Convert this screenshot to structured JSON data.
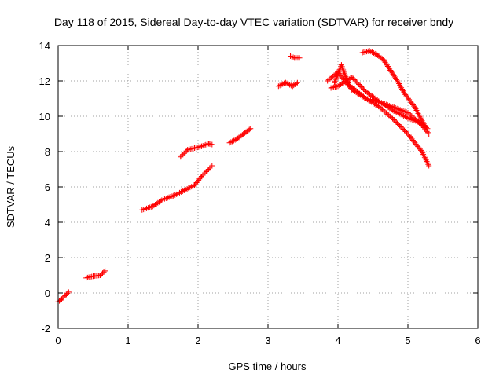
{
  "chart_data": {
    "type": "scatter",
    "title": "Day 118 of 2015, Sidereal Day-to-day VTEC variation (SDTVAR) for receiver bndy",
    "xlabel": "GPS time / hours",
    "ylabel": "SDTVAR / TECUs",
    "xlim": [
      0,
      6
    ],
    "ylim": [
      -2,
      14
    ],
    "xticks": [
      0,
      1,
      2,
      3,
      4,
      5,
      6
    ],
    "yticks": [
      -2,
      0,
      2,
      4,
      6,
      8,
      10,
      12,
      14
    ],
    "grid": true,
    "marker": "plus",
    "color": "#ff0000",
    "series": [
      {
        "x": [
          0.0,
          0.05,
          0.1,
          0.15
        ],
        "y": [
          -0.5,
          -0.35,
          -0.15,
          0.05
        ]
      },
      {
        "x": [
          0.4,
          0.5,
          0.6,
          0.67
        ],
        "y": [
          0.85,
          0.95,
          1.0,
          1.25
        ]
      },
      {
        "x": [
          1.2,
          1.35,
          1.5,
          1.65,
          1.8,
          1.95,
          2.05,
          2.2
        ],
        "y": [
          4.7,
          4.9,
          5.3,
          5.5,
          5.8,
          6.1,
          6.6,
          7.2
        ]
      },
      {
        "x": [
          1.75,
          1.85,
          1.95,
          2.05,
          2.15,
          2.2
        ],
        "y": [
          7.7,
          8.1,
          8.2,
          8.3,
          8.45,
          8.4
        ]
      },
      {
        "x": [
          2.45,
          2.55,
          2.65,
          2.75
        ],
        "y": [
          8.5,
          8.7,
          9.0,
          9.3
        ]
      },
      {
        "x": [
          3.15,
          3.25,
          3.35,
          3.42
        ],
        "y": [
          11.7,
          11.9,
          11.7,
          11.9
        ]
      },
      {
        "x": [
          3.32,
          3.38,
          3.45
        ],
        "y": [
          13.4,
          13.3,
          13.3
        ]
      },
      {
        "x": [
          3.85,
          4.0,
          4.2,
          4.4,
          4.6,
          4.8,
          5.0,
          5.2,
          5.3
        ],
        "y": [
          12.0,
          12.5,
          11.5,
          11.0,
          10.5,
          9.8,
          9.0,
          8.0,
          7.2
        ]
      },
      {
        "x": [
          3.9,
          4.0,
          4.2,
          4.4,
          4.6,
          4.8,
          5.0,
          5.2,
          5.28
        ],
        "y": [
          11.6,
          11.7,
          12.2,
          11.4,
          10.8,
          10.3,
          9.9,
          9.6,
          9.3
        ]
      },
      {
        "x": [
          3.95,
          4.05,
          4.15,
          4.4,
          4.6,
          4.8,
          5.0,
          5.2,
          5.3
        ],
        "y": [
          11.9,
          12.9,
          11.8,
          11.0,
          10.8,
          10.5,
          10.2,
          9.5,
          9.0
        ]
      },
      {
        "x": [
          4.35,
          4.45,
          4.55,
          4.65,
          4.75,
          4.85,
          4.95,
          5.1,
          5.25
        ],
        "y": [
          13.6,
          13.7,
          13.5,
          13.2,
          12.6,
          12.0,
          11.3,
          10.5,
          9.4
        ]
      }
    ]
  }
}
